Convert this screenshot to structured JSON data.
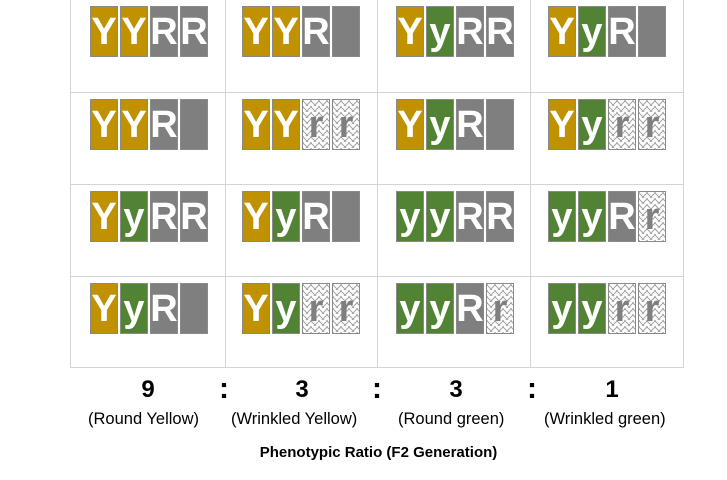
{
  "colors": {
    "dominant_yellow": "#c09100",
    "recessive_green": "#528234",
    "dominant_round": "#7f7f7f",
    "recessive_wrinkled_pattern": "zigzag-gray"
  },
  "grid": [
    [
      "YYRR",
      "YYR_",
      "YyRR",
      "YyR_"
    ],
    [
      "YYR_",
      "YYrr",
      "YyR_",
      "Yyrr"
    ],
    [
      "YyRR",
      "YyR_",
      "yyRR",
      "yyRr"
    ],
    [
      "YyR_",
      "Yyrr",
      "yyRr",
      "yyrr"
    ]
  ],
  "ratio": {
    "values": [
      "9",
      "3",
      "3",
      "1"
    ],
    "separator": ":",
    "phenotypes": [
      "(Round Yellow)",
      "(Wrinkled Yellow)",
      "(Round green)",
      "(Wrinkled green)"
    ],
    "title": "Phenotypic Ratio (F2 Generation)"
  }
}
